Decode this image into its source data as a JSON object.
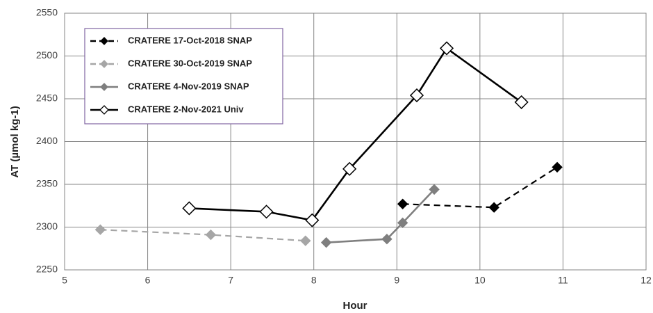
{
  "chart_data": {
    "type": "line",
    "x_label": "Hour",
    "y_label": "AT (µmol kg-1)",
    "xlim": [
      5,
      12
    ],
    "xticks": [
      5,
      6,
      7,
      8,
      9,
      10,
      11,
      12
    ],
    "ylim": [
      2250,
      2550
    ],
    "yticks": [
      2250,
      2300,
      2350,
      2400,
      2450,
      2500,
      2550
    ],
    "grid": true,
    "legend": "upper left",
    "series": [
      {
        "name": "CRATERE 17-Oct-2018 SNAP",
        "color": "#000000",
        "dash": true,
        "marker": "diamond",
        "x": [
          9.07,
          10.17,
          10.93
        ],
        "values": [
          2327,
          2323,
          2370
        ]
      },
      {
        "name": "CRATERE 30-Oct-2019 SNAP",
        "color": "#a6a6a6",
        "dash": true,
        "marker": "diamond",
        "x": [
          5.43,
          6.76,
          7.9
        ],
        "values": [
          2297,
          2291,
          2284
        ]
      },
      {
        "name": "CRATERE 4-Nov-2019 SNAP",
        "color": "#7f7f7f",
        "dash": false,
        "marker": "diamond",
        "x": [
          8.15,
          8.88,
          9.07,
          9.45
        ],
        "values": [
          2282,
          2286,
          2305,
          2344
        ]
      },
      {
        "name": "CRATERE 2-Nov-2021 Univ",
        "color": "#000000",
        "dash": false,
        "marker": "diamond-open",
        "x": [
          6.5,
          7.43,
          7.98,
          8.43,
          9.24,
          9.6,
          10.5
        ],
        "values": [
          2322,
          2318,
          2308,
          2368,
          2454,
          2509,
          2446
        ]
      }
    ]
  }
}
